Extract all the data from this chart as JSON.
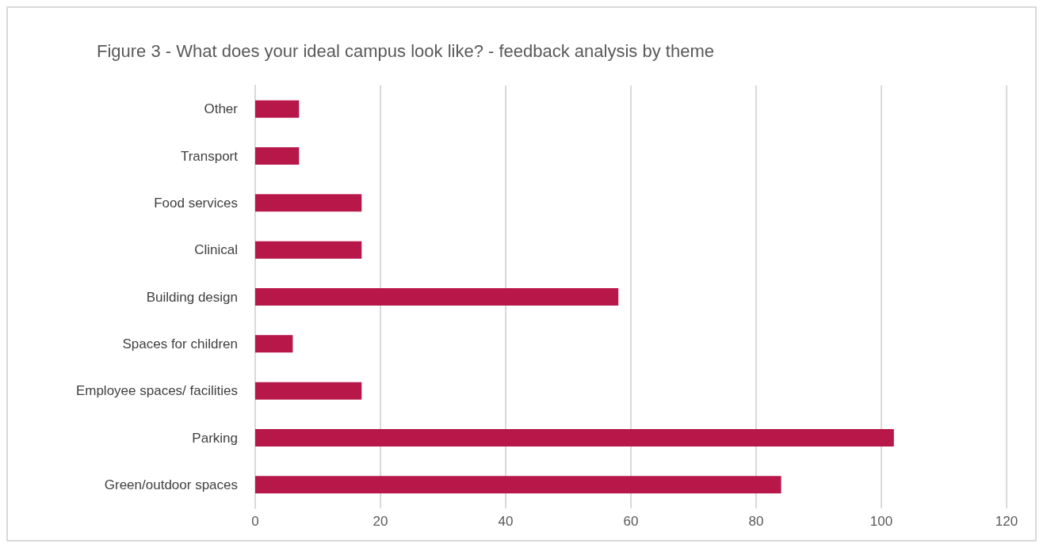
{
  "chart_data": {
    "type": "bar",
    "orientation": "horizontal",
    "title": "Figure 3 - What does your ideal campus look like? - feedback analysis by theme",
    "categories": [
      "Other",
      "Transport",
      "Food services",
      "Clinical",
      "Building design",
      "Spaces for children",
      "Employee spaces/ facilities",
      "Parking",
      "Green/outdoor spaces"
    ],
    "values": [
      7,
      7,
      17,
      17,
      58,
      6,
      17,
      102,
      84
    ],
    "color": "#b8174a",
    "xlim": [
      0,
      120
    ],
    "xticks": [
      0,
      20,
      40,
      60,
      80,
      100,
      120
    ],
    "grid": "x"
  }
}
